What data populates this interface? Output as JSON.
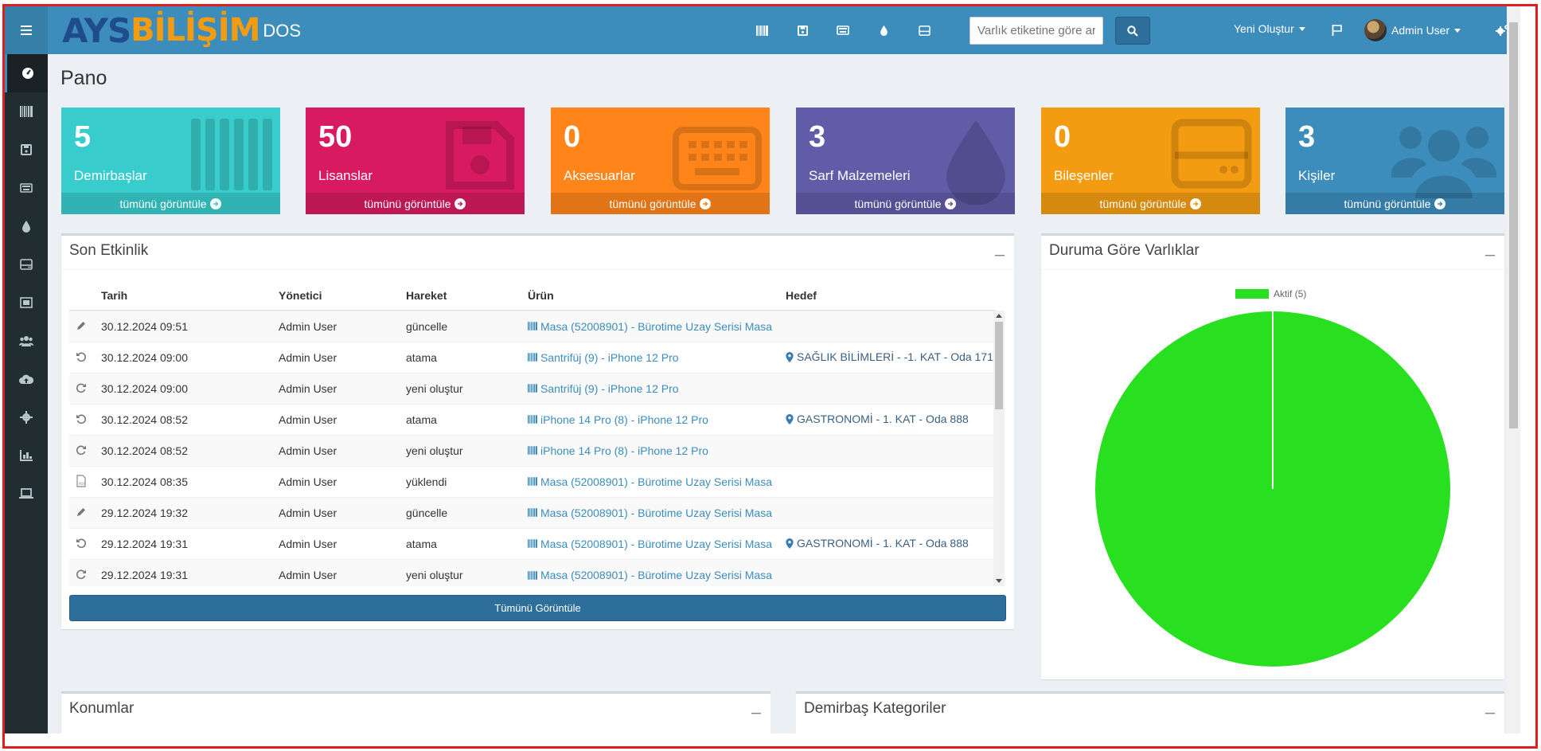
{
  "header": {
    "logo_part1": "AYS",
    "logo_part2": "BİLİŞİM",
    "logo_suffix": "DOS",
    "search_placeholder": "Varlık etiketine göre arama",
    "create_new": "Yeni Oluştur",
    "user_name": "Admin User"
  },
  "page_title": "Pano",
  "tiles": [
    {
      "count": "5",
      "label": "Demirbaşlar",
      "footer": "tümünü görüntüle",
      "color": "#39cccc",
      "icon": "barcode-icon"
    },
    {
      "count": "50",
      "label": "Lisanslar",
      "footer": "tümünü görüntüle",
      "color": "#d81b60",
      "icon": "floppy-disk-icon"
    },
    {
      "count": "0",
      "label": "Aksesuarlar",
      "footer": "tümünü görüntüle",
      "color": "#ff851b",
      "icon": "keyboard-icon"
    },
    {
      "count": "3",
      "label": "Sarf Malzemeleri",
      "footer": "tümünü görüntüle",
      "color": "#605ca8",
      "icon": "droplet-icon"
    },
    {
      "count": "0",
      "label": "Bileşenler",
      "footer": "tümünü görüntüle",
      "color": "#f39c12",
      "icon": "hdd-icon"
    },
    {
      "count": "3",
      "label": "Kişiler",
      "footer": "tümünü görüntüle",
      "color": "#3c8dbc",
      "icon": "users-icon"
    }
  ],
  "activity": {
    "title": "Son Etkinlik",
    "columns": [
      "Tarih",
      "Yönetici",
      "Hareket",
      "Ürün",
      "Hedef"
    ],
    "rows": [
      {
        "icon": "pencil-icon",
        "date": "30.12.2024 09:51",
        "admin": "Admin User",
        "action": "güncelle",
        "item": "Masa (52008901) - Bürotime Uzay Serisi Masa",
        "target": ""
      },
      {
        "icon": "undo-icon",
        "date": "30.12.2024 09:00",
        "admin": "Admin User",
        "action": "atama",
        "item": "Santrifüj (9) - iPhone 12 Pro",
        "target": "SAĞLIK BİLİMLERİ - -1. KAT - Oda 171"
      },
      {
        "icon": "redo-icon",
        "date": "30.12.2024 09:00",
        "admin": "Admin User",
        "action": "yeni oluştur",
        "item": "Santrifüj (9) - iPhone 12 Pro",
        "target": ""
      },
      {
        "icon": "undo-icon",
        "date": "30.12.2024 08:52",
        "admin": "Admin User",
        "action": "atama",
        "item": "iPhone 14 Pro (8) - iPhone 12 Pro",
        "target": "GASTRONOMİ - 1. KAT - Oda 888"
      },
      {
        "icon": "redo-icon",
        "date": "30.12.2024 08:52",
        "admin": "Admin User",
        "action": "yeni oluştur",
        "item": "iPhone 14 Pro (8) - iPhone 12 Pro",
        "target": ""
      },
      {
        "icon": "pdf-file-icon",
        "date": "30.12.2024 08:35",
        "admin": "Admin User",
        "action": "yüklendi",
        "item": "Masa (52008901) - Bürotime Uzay Serisi Masa",
        "target": ""
      },
      {
        "icon": "pencil-icon",
        "date": "29.12.2024 19:32",
        "admin": "Admin User",
        "action": "güncelle",
        "item": "Masa (52008901) - Bürotime Uzay Serisi Masa",
        "target": ""
      },
      {
        "icon": "undo-icon",
        "date": "29.12.2024 19:31",
        "admin": "Admin User",
        "action": "atama",
        "item": "Masa (52008901) - Bürotime Uzay Serisi Masa",
        "target": "GASTRONOMİ - 1. KAT - Oda 888"
      },
      {
        "icon": "redo-icon",
        "date": "29.12.2024 19:31",
        "admin": "Admin User",
        "action": "yeni oluştur",
        "item": "Masa (52008901) - Bürotime Uzay Serisi Masa",
        "target": ""
      }
    ],
    "view_all": "Tümünü Görüntüle"
  },
  "status_box": {
    "title": "Duruma Göre Varlıklar",
    "legend": "Aktif (5)"
  },
  "chart_data": {
    "type": "pie",
    "categories": [
      "Aktif"
    ],
    "values": [
      5
    ],
    "colors": [
      "#28e020"
    ]
  },
  "bottom": {
    "locations_title": "Konumlar",
    "categories_title": "Demirbaş Kategoriler"
  }
}
